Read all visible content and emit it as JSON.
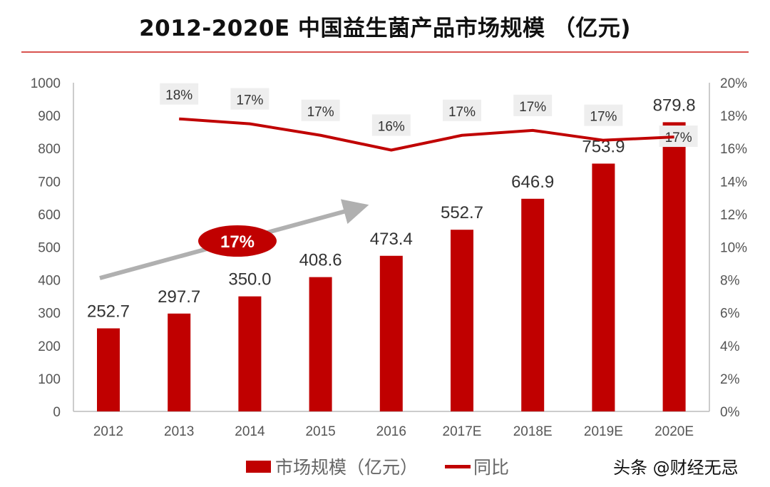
{
  "chart_data": {
    "type": "bar+line",
    "title": "2012-2020E 中国益生菌产品市场规模 （亿元)",
    "categories": [
      "2012",
      "2013",
      "2014",
      "2015",
      "2016",
      "2017E",
      "2018E",
      "2019E",
      "2020E"
    ],
    "series": [
      {
        "name": "市场规模（亿元）",
        "type": "bar",
        "axis": "left",
        "color": "#c00000",
        "values": [
          252.7,
          297.7,
          350.0,
          408.6,
          473.4,
          552.7,
          646.9,
          753.9,
          879.8
        ],
        "labels": [
          "252.7",
          "297.7",
          "350.0",
          "408.6",
          "473.4",
          "552.7",
          "646.9",
          "753.9",
          "879.8"
        ]
      },
      {
        "name": "同比",
        "type": "line",
        "axis": "right",
        "color": "#c00000",
        "values": [
          null,
          17.8,
          17.5,
          16.8,
          15.9,
          16.8,
          17.1,
          16.5,
          16.7
        ],
        "labels": [
          null,
          "18%",
          "17%",
          "17%",
          "16%",
          "17%",
          "17%",
          "17%",
          "17%"
        ]
      }
    ],
    "y_left": {
      "range": [
        0,
        1000
      ],
      "ticks": [
        "0",
        "100",
        "200",
        "300",
        "400",
        "500",
        "600",
        "700",
        "800",
        "900",
        "1000"
      ]
    },
    "y_right": {
      "range": [
        0,
        20
      ],
      "ticks": [
        "0%",
        "2%",
        "4%",
        "6%",
        "8%",
        "10%",
        "12%",
        "14%",
        "16%",
        "18%",
        "20%"
      ]
    },
    "annotation": {
      "text": "17%",
      "color": "#c00000"
    },
    "legend_position": "bottom",
    "grid": false
  },
  "watermark": "头条 @财经无忌"
}
